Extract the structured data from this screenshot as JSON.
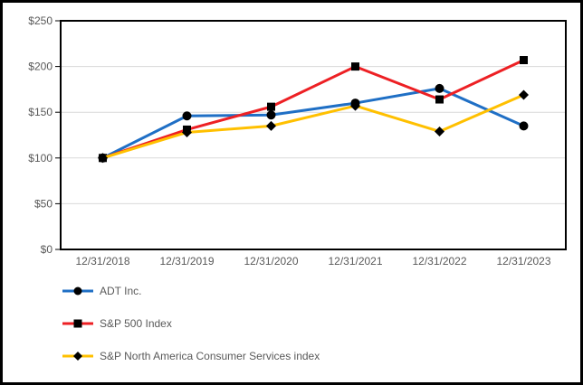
{
  "chart_data": {
    "type": "line",
    "title": "",
    "x_categories": [
      "12/31/2018",
      "12/31/2019",
      "12/31/2020",
      "12/31/2021",
      "12/31/2022",
      "12/31/2023"
    ],
    "series": [
      {
        "name": "ADT Inc.",
        "marker": "circle",
        "color": "#1F6FC5",
        "values": [
          100,
          146,
          147,
          160,
          176,
          135
        ]
      },
      {
        "name": "S&P 500 Index",
        "marker": "square",
        "color": "#ED2024",
        "values": [
          100,
          131,
          156,
          200,
          164,
          207
        ]
      },
      {
        "name": "S&P North America Consumer Services index",
        "marker": "diamond",
        "color": "#FFC000",
        "values": [
          100,
          128,
          135,
          157,
          129,
          169
        ]
      }
    ],
    "ylim": [
      0,
      250
    ],
    "y_ticks": [
      0,
      50,
      100,
      150,
      200,
      250
    ],
    "y_tick_labels": [
      "$0",
      "$50",
      "$100",
      "$150",
      "$200",
      "$250"
    ],
    "marker_color": "#000000",
    "grid": "horizontal",
    "grid_color": "#D9D9D9",
    "axis_color": "#000000",
    "text_color": "#595959",
    "legend_position": "bottom-left"
  }
}
